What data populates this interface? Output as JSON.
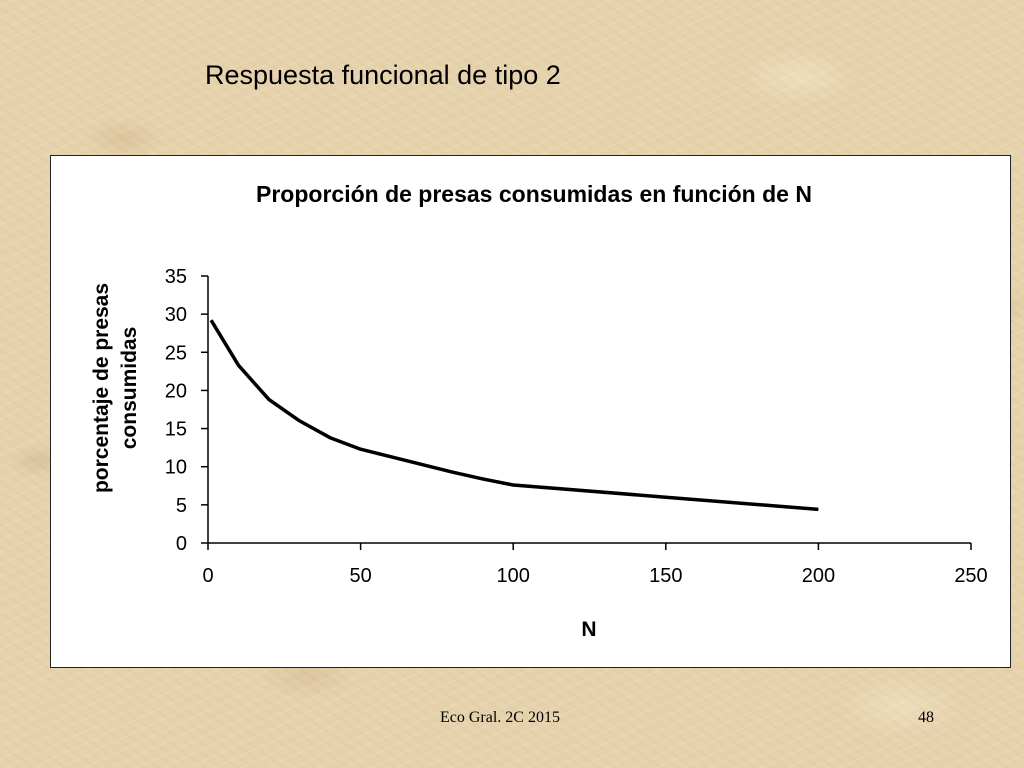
{
  "slide": {
    "title": "Respuesta funcional de tipo 2",
    "footer": "Eco Gral. 2C 2015",
    "page_number": "48"
  },
  "chart_data": {
    "type": "line",
    "title": "Proporción de presas consumidas en función de N",
    "xlabel": "N",
    "ylabel_lines": [
      "porcentaje de presas",
      "consumidas"
    ],
    "xlim": [
      0,
      250
    ],
    "ylim": [
      0,
      35
    ],
    "x_ticks": [
      0,
      50,
      100,
      150,
      200,
      250
    ],
    "y_ticks": [
      0,
      5,
      10,
      15,
      20,
      25,
      30,
      35
    ],
    "grid": false,
    "legend": "none",
    "series": [
      {
        "color": "#000000",
        "x": [
          1,
          10,
          20,
          30,
          40,
          50,
          60,
          70,
          80,
          90,
          100,
          150,
          200
        ],
        "y": [
          29.2,
          23.3,
          18.8,
          16.0,
          13.8,
          12.3,
          11.3,
          10.3,
          9.3,
          8.4,
          7.6,
          6.0,
          4.4
        ]
      }
    ]
  }
}
